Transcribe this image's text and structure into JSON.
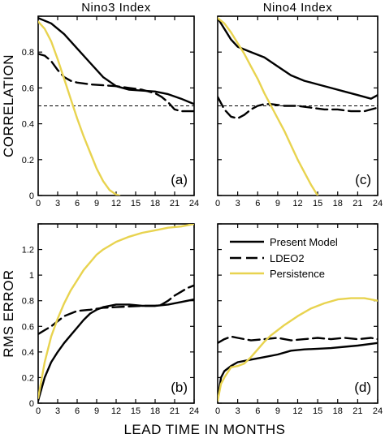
{
  "figure": {
    "xlabel": "LEAD TIME IN MONTHS",
    "legend": [
      {
        "name": "Present Model",
        "style": "solid",
        "color": "#000000"
      },
      {
        "name": "LDEO2",
        "style": "dashed",
        "color": "#000000"
      },
      {
        "name": "Persistence",
        "style": "solid",
        "color": "#e8d34f"
      }
    ],
    "colors": {
      "model": "#000000",
      "ldeo2": "#000000",
      "persistence": "#e8d34f"
    }
  },
  "chart_data": [
    {
      "type": "line",
      "panel": "(a)",
      "title": "Nino3 Index",
      "ylabel": "CORRELATION",
      "xlim": [
        0,
        24
      ],
      "ylim": [
        0,
        1.0
      ],
      "xticks": [
        "0",
        "3",
        "6",
        "9",
        "12",
        "15",
        "18",
        "21",
        "24"
      ],
      "yticks": [
        "0",
        "0.2",
        "0.4",
        "0.6",
        "0.8"
      ],
      "reference_line": 0.5,
      "series": [
        {
          "key": "model",
          "x": [
            0,
            2,
            4,
            6,
            8,
            10,
            12,
            14,
            16,
            18,
            20,
            22,
            24
          ],
          "y": [
            0.99,
            0.96,
            0.9,
            0.82,
            0.74,
            0.66,
            0.61,
            0.59,
            0.585,
            0.58,
            0.565,
            0.54,
            0.51
          ]
        },
        {
          "key": "ldeo2",
          "x": [
            0,
            1,
            2,
            3,
            4,
            5,
            6,
            8,
            10,
            12,
            14,
            16,
            18,
            19,
            20,
            21,
            22,
            24
          ],
          "y": [
            0.79,
            0.78,
            0.75,
            0.7,
            0.66,
            0.64,
            0.63,
            0.62,
            0.615,
            0.61,
            0.6,
            0.59,
            0.57,
            0.55,
            0.52,
            0.48,
            0.47,
            0.47
          ]
        },
        {
          "key": "persistence",
          "x": [
            0,
            1,
            2,
            3,
            4,
            5,
            6,
            7,
            8,
            9,
            10,
            11,
            12,
            12.5
          ],
          "y": [
            0.97,
            0.93,
            0.86,
            0.76,
            0.65,
            0.54,
            0.43,
            0.33,
            0.24,
            0.15,
            0.08,
            0.03,
            0.005,
            0
          ]
        }
      ]
    },
    {
      "type": "line",
      "panel": "(c)",
      "title": "Nino4 Index",
      "ylabel": "",
      "xlim": [
        0,
        24
      ],
      "ylim": [
        0,
        1.0
      ],
      "xticks": [
        "0",
        "3",
        "6",
        "9",
        "12",
        "15",
        "18",
        "21",
        "24"
      ],
      "yticks": [],
      "reference_line": 0.5,
      "series": [
        {
          "key": "model",
          "x": [
            0,
            1,
            2,
            3,
            5,
            7,
            9,
            11,
            13,
            15,
            17,
            19,
            21,
            23,
            24
          ],
          "y": [
            0.99,
            0.93,
            0.87,
            0.83,
            0.8,
            0.77,
            0.72,
            0.67,
            0.64,
            0.62,
            0.6,
            0.58,
            0.56,
            0.54,
            0.56
          ]
        },
        {
          "key": "ldeo2",
          "x": [
            0,
            1,
            2,
            3,
            4,
            5,
            6,
            7,
            8,
            10,
            12,
            14,
            16,
            18,
            20,
            22,
            24
          ],
          "y": [
            0.55,
            0.48,
            0.44,
            0.43,
            0.45,
            0.48,
            0.5,
            0.51,
            0.51,
            0.5,
            0.5,
            0.49,
            0.48,
            0.48,
            0.47,
            0.47,
            0.49
          ]
        },
        {
          "key": "persistence",
          "x": [
            0,
            1,
            2,
            3,
            4,
            5,
            6,
            7,
            8,
            9,
            10,
            11,
            12,
            13,
            14,
            15
          ],
          "y": [
            0.99,
            0.96,
            0.91,
            0.85,
            0.79,
            0.72,
            0.65,
            0.57,
            0.5,
            0.43,
            0.36,
            0.28,
            0.2,
            0.13,
            0.06,
            0
          ]
        }
      ]
    },
    {
      "type": "line",
      "panel": "(b)",
      "title": "",
      "ylabel": "RMS ERROR",
      "xlim": [
        0,
        24
      ],
      "ylim": [
        0,
        1.4
      ],
      "xticks": [
        "0",
        "3",
        "6",
        "9",
        "12",
        "15",
        "18",
        "21",
        "24"
      ],
      "yticks": [
        "0",
        "0.2",
        "0.4",
        "0.6",
        "0.8",
        "1",
        "1.2"
      ],
      "series": [
        {
          "key": "model",
          "x": [
            0,
            1,
            2,
            3,
            4,
            5,
            6,
            7,
            8,
            9,
            10,
            12,
            14,
            16,
            18,
            20,
            22,
            24
          ],
          "y": [
            0.02,
            0.2,
            0.32,
            0.4,
            0.47,
            0.53,
            0.59,
            0.65,
            0.7,
            0.73,
            0.75,
            0.77,
            0.77,
            0.76,
            0.76,
            0.77,
            0.79,
            0.81
          ]
        },
        {
          "key": "ldeo2",
          "x": [
            0,
            1,
            2,
            3,
            4,
            5,
            6,
            8,
            10,
            12,
            14,
            16,
            18,
            19,
            20,
            21,
            22,
            23,
            24
          ],
          "y": [
            0.54,
            0.57,
            0.6,
            0.64,
            0.68,
            0.7,
            0.72,
            0.73,
            0.745,
            0.75,
            0.755,
            0.76,
            0.76,
            0.77,
            0.8,
            0.84,
            0.87,
            0.9,
            0.92
          ]
        },
        {
          "key": "persistence",
          "x": [
            0,
            1,
            2,
            3,
            4,
            5,
            6,
            7,
            8,
            9,
            10,
            12,
            14,
            16,
            18,
            20,
            22,
            24
          ],
          "y": [
            0.04,
            0.32,
            0.52,
            0.66,
            0.78,
            0.88,
            0.96,
            1.04,
            1.1,
            1.16,
            1.2,
            1.26,
            1.3,
            1.33,
            1.35,
            1.37,
            1.38,
            1.4
          ]
        }
      ]
    },
    {
      "type": "line",
      "panel": "(d)",
      "title": "",
      "ylabel": "",
      "xlim": [
        0,
        24
      ],
      "ylim": [
        0,
        1.4
      ],
      "xticks": [
        "0",
        "3",
        "6",
        "9",
        "12",
        "15",
        "18",
        "21",
        "24"
      ],
      "yticks": [],
      "series": [
        {
          "key": "model",
          "x": [
            0,
            0.5,
            1,
            2,
            3,
            5,
            7,
            9,
            11,
            13,
            15,
            17,
            19,
            21,
            24
          ],
          "y": [
            0.02,
            0.2,
            0.25,
            0.29,
            0.32,
            0.34,
            0.36,
            0.38,
            0.41,
            0.42,
            0.425,
            0.43,
            0.44,
            0.45,
            0.47
          ]
        },
        {
          "key": "ldeo2",
          "x": [
            0,
            1,
            2,
            3,
            5,
            7,
            9,
            11,
            13,
            15,
            17,
            19,
            21,
            23,
            24
          ],
          "y": [
            0.47,
            0.5,
            0.52,
            0.51,
            0.49,
            0.5,
            0.51,
            0.49,
            0.5,
            0.51,
            0.5,
            0.51,
            0.5,
            0.51,
            0.5
          ]
        },
        {
          "key": "persistence",
          "x": [
            0,
            0.5,
            1,
            2,
            3,
            4,
            5,
            6,
            7,
            8,
            9,
            10,
            12,
            14,
            16,
            18,
            20,
            22,
            24
          ],
          "y": [
            0.02,
            0.15,
            0.2,
            0.28,
            0.29,
            0.31,
            0.36,
            0.42,
            0.48,
            0.53,
            0.57,
            0.61,
            0.68,
            0.74,
            0.78,
            0.81,
            0.82,
            0.82,
            0.8
          ]
        }
      ]
    }
  ]
}
